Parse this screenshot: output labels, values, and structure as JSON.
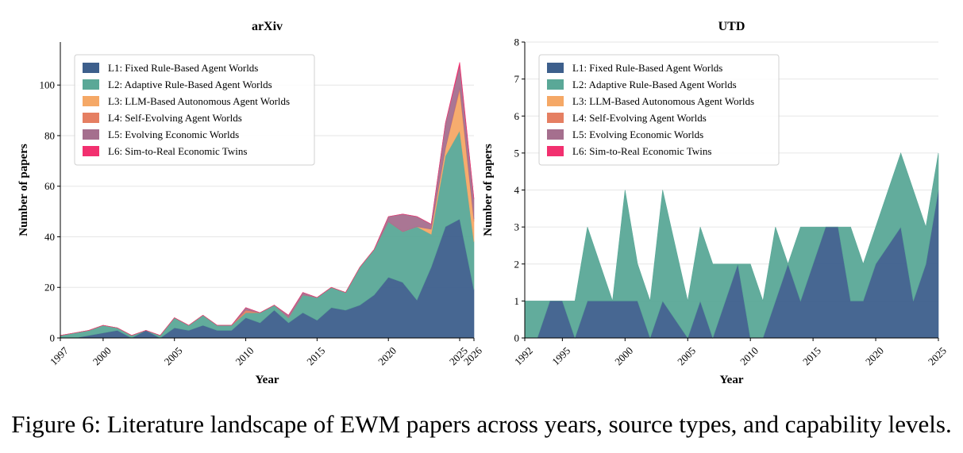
{
  "figure": {
    "caption": "Figure 6: Literature landscape of EWM papers across years, source types, and capability levels."
  },
  "legend": {
    "entries": [
      {
        "label": "L1: Fixed Rule-Based Agent Worlds",
        "color": "#3d5f8c"
      },
      {
        "label": "L2: Adaptive Rule-Based Agent Worlds",
        "color": "#5aa897"
      },
      {
        "label": "L3: LLM-Based Autonomous Agent Worlds",
        "color": "#f5a866"
      },
      {
        "label": "L4: Self-Evolving Agent Worlds",
        "color": "#e57f62"
      },
      {
        "label": "L5: Evolving Economic Worlds",
        "color": "#a56f8e"
      },
      {
        "label": "L6: Sim-to-Real Economic Twins",
        "color": "#f2306f"
      }
    ]
  },
  "chart_data": [
    {
      "type": "area",
      "stacked": true,
      "title": "arXiv",
      "xlabel": "Year",
      "ylabel": "Number of papers",
      "xlim": [
        1997,
        2026
      ],
      "ylim": [
        0,
        117
      ],
      "xticks": [
        "1997",
        "2000",
        "2005",
        "2010",
        "2015",
        "2020",
        "2025",
        "2026"
      ],
      "yticks": [
        "0",
        "20",
        "40",
        "60",
        "80",
        "100"
      ],
      "grid": "horizontal",
      "legend_position": "top-left",
      "x": [
        1997,
        1998,
        1999,
        2000,
        2001,
        2002,
        2003,
        2004,
        2005,
        2006,
        2007,
        2008,
        2009,
        2010,
        2011,
        2012,
        2013,
        2014,
        2015,
        2016,
        2017,
        2018,
        2019,
        2020,
        2021,
        2022,
        2023,
        2024,
        2025,
        2026
      ],
      "series": [
        {
          "name": "L1: Fixed Rule-Based Agent Worlds",
          "values": [
            0,
            0,
            1,
            2,
            3,
            0,
            3,
            0,
            4,
            3,
            5,
            3,
            3,
            8,
            6,
            11,
            6,
            10,
            7,
            12,
            11,
            13,
            17,
            24,
            22,
            15,
            28,
            44,
            47,
            19
          ]
        },
        {
          "name": "L2: Adaptive Rule-Based Agent Worlds",
          "values": [
            1,
            2,
            2,
            3,
            1,
            1,
            0,
            1,
            4,
            2,
            4,
            2,
            2,
            2,
            4,
            2,
            2,
            7,
            9,
            8,
            7,
            15,
            18,
            22,
            20,
            29,
            13,
            28,
            35,
            19
          ]
        },
        {
          "name": "L3: LLM-Based Autonomous Agent Worlds",
          "values": [
            0,
            0,
            0,
            0,
            0,
            0,
            0,
            0,
            0,
            0,
            0,
            0,
            0,
            0,
            0,
            0,
            0,
            0,
            0,
            0,
            0,
            0,
            0,
            0,
            0,
            0,
            2,
            3,
            16,
            8
          ]
        },
        {
          "name": "L4: Self-Evolving Agent Worlds",
          "values": [
            0,
            0,
            0,
            0,
            0,
            0,
            0,
            0,
            0,
            0,
            0,
            0,
            0,
            1,
            0,
            0,
            0,
            0,
            0,
            0,
            0,
            0,
            0,
            0,
            0,
            0,
            0,
            0,
            1,
            1
          ]
        },
        {
          "name": "L5: Evolving Economic Worlds",
          "values": [
            0,
            0,
            0,
            0,
            0,
            0,
            0,
            0,
            0,
            0,
            0,
            0,
            0,
            1,
            0,
            0,
            1,
            1,
            0,
            0,
            0,
            0,
            0,
            2,
            7,
            4,
            2,
            10,
            9,
            8
          ]
        },
        {
          "name": "L6: Sim-to-Real Economic Twins",
          "values": [
            0,
            0,
            0,
            0,
            0,
            0,
            0,
            0,
            0,
            0,
            0,
            0,
            0,
            0,
            0,
            0,
            0,
            0,
            0,
            0,
            0,
            0,
            0,
            0,
            0,
            0,
            0,
            0,
            1,
            0
          ]
        }
      ]
    },
    {
      "type": "area",
      "stacked": true,
      "title": "UTD",
      "xlabel": "Year",
      "ylabel": "Number of papers",
      "xlim": [
        1992,
        2025
      ],
      "ylim": [
        0,
        8
      ],
      "xticks": [
        "1992",
        "1995",
        "2000",
        "2005",
        "2010",
        "2015",
        "2020",
        "2025"
      ],
      "yticks": [
        "0",
        "1",
        "2",
        "3",
        "4",
        "5",
        "6",
        "7",
        "8"
      ],
      "grid": "horizontal",
      "legend_position": "top-left",
      "x": [
        1992,
        1993,
        1994,
        1995,
        1996,
        1997,
        1998,
        1999,
        2000,
        2001,
        2002,
        2003,
        2004,
        2005,
        2006,
        2007,
        2008,
        2009,
        2010,
        2011,
        2012,
        2013,
        2014,
        2015,
        2016,
        2017,
        2018,
        2019,
        2020,
        2021,
        2022,
        2023,
        2024,
        2025
      ],
      "series": [
        {
          "name": "L1: Fixed Rule-Based Agent Worlds",
          "values": [
            0,
            0,
            1,
            1,
            0,
            1,
            1,
            1,
            1,
            1,
            0,
            1,
            0.5,
            0,
            1,
            0,
            1,
            2,
            0,
            0,
            1,
            2,
            1,
            2,
            3,
            3,
            1,
            1,
            2,
            2.5,
            3,
            1,
            2,
            4
          ]
        },
        {
          "name": "L2: Adaptive Rule-Based Agent Worlds",
          "values": [
            1,
            1,
            0,
            0,
            1,
            2,
            1,
            0,
            3,
            1,
            1,
            3,
            2,
            1,
            2,
            2,
            1,
            0,
            2,
            1,
            2,
            0,
            2,
            1,
            0,
            0,
            2,
            1,
            1,
            1.5,
            2,
            3,
            1,
            1
          ]
        },
        {
          "name": "L3: LLM-Based Autonomous Agent Worlds",
          "values": [
            0,
            0,
            0,
            0,
            0,
            0,
            0,
            0,
            0,
            0,
            0,
            0,
            0,
            0,
            0,
            0,
            0,
            0,
            0,
            0,
            0,
            0,
            0,
            0,
            0,
            0,
            0,
            0,
            0,
            0,
            0,
            0,
            0,
            0
          ]
        },
        {
          "name": "L4: Self-Evolving Agent Worlds",
          "values": [
            0,
            0,
            0,
            0,
            0,
            0,
            0,
            0,
            0,
            0,
            0,
            0,
            0,
            0,
            0,
            0,
            0,
            0,
            0,
            0,
            0,
            0,
            0,
            0,
            0,
            0,
            0,
            0,
            0,
            0,
            0,
            0,
            0,
            0
          ]
        },
        {
          "name": "L5: Evolving Economic Worlds",
          "values": [
            0,
            0,
            0,
            0,
            0,
            0,
            0,
            0,
            0,
            0,
            0,
            0,
            0,
            0,
            0,
            0,
            0,
            0,
            0,
            0,
            0,
            0,
            0,
            0,
            0,
            0,
            0,
            0,
            0,
            0,
            0,
            0,
            0,
            0
          ]
        },
        {
          "name": "L6: Sim-to-Real Economic Twins",
          "values": [
            0,
            0,
            0,
            0,
            0,
            0,
            0,
            0,
            0,
            0,
            0,
            0,
            0,
            0,
            0,
            0,
            0,
            0,
            0,
            0,
            0,
            0,
            0,
            0,
            0,
            0,
            0,
            0,
            0,
            0,
            0,
            0,
            0,
            0
          ]
        }
      ]
    }
  ]
}
